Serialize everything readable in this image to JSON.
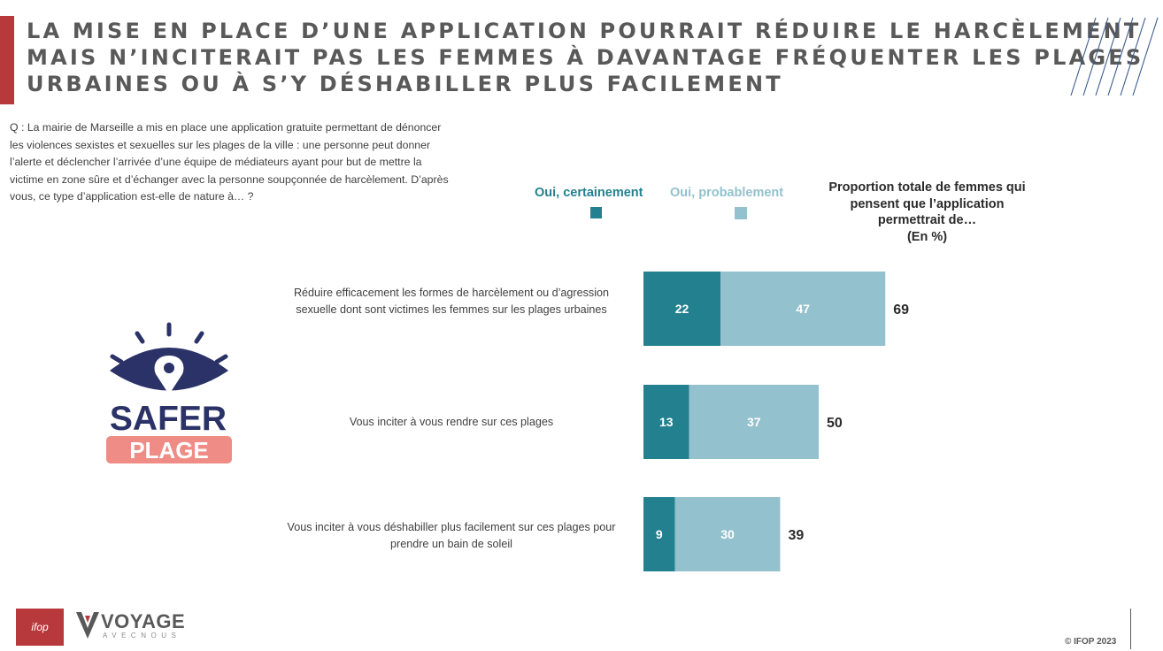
{
  "title": {
    "line1": "LA MISE EN PLACE D’UNE APPLICATION POURRAIT RÉDUIRE LE HARCÈLEMENT",
    "line2": "MAIS N’INCITERAIT PAS LES FEMMES À DAVANTAGE FRÉQUENTER LES PLAGES",
    "line3": "URBAINES OU À S’Y DÉSHABILLER PLUS FACILEMENT"
  },
  "question": "Q : La mairie de Marseille a mis en place une application gratuite permettant de dénoncer les violences sexistes et sexuelles sur les plages de la ville : une personne peut donner l’alerte et déclencher l’arrivée d’une équipe de médiateurs ayant pour but de mettre la victime en zone sûre et d’échanger avec la personne soupçonnée de harcèlement. D’après vous, ce type d’application est-elle de nature à… ?",
  "total_header": {
    "text": "Proportion totale de femmes qui pensent que l’application permettrait de…",
    "unit": "(En %)"
  },
  "logo": {
    "line1": "SAFER",
    "line2": "PLAGE",
    "icon": "eye-location-icon"
  },
  "footer": {
    "ifop": "ifop",
    "voyage": "VOYAGE",
    "voyage_sub": "AVECNOUS",
    "copyright": "© IFOP 2023"
  },
  "colors": {
    "accent_red": "#b8393b",
    "certainement": "#23808f",
    "probablement": "#93c1ce",
    "logo_navy": "#2b3267",
    "logo_salmon": "#ef8c85"
  },
  "chart_data": {
    "type": "bar",
    "orientation": "horizontal",
    "stacked": true,
    "categories": [
      "Réduire efficacement les formes de harcèlement ou d’agression sexuelle dont sont victimes les femmes sur les plages urbaines",
      "Vous inciter à vous rendre sur ces plages",
      "Vous inciter à vous déshabiller plus facilement sur ces plages pour prendre un bain de soleil"
    ],
    "series": [
      {
        "name": "Oui, certainement",
        "values": [
          22,
          13,
          9
        ],
        "color": "#23808f"
      },
      {
        "name": "Oui, probablement",
        "values": [
          47,
          37,
          30
        ],
        "color": "#93c1ce"
      }
    ],
    "totals": [
      69,
      50,
      39
    ],
    "legend": "top"
  }
}
